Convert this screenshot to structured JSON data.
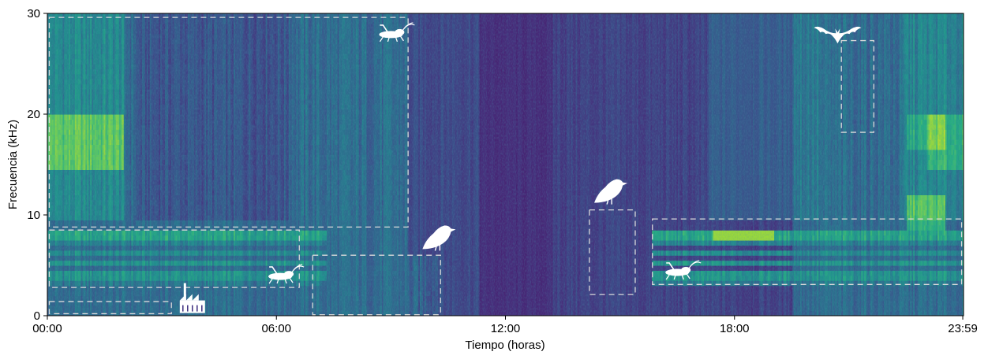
{
  "chart_data": {
    "type": "heatmap",
    "title": "",
    "xlabel": "Tiempo (horas)",
    "ylabel": "Frecuencia (kHz)",
    "xlim": [
      0,
      24
    ],
    "ylim": [
      0,
      30
    ],
    "x_ticks": [
      {
        "value": 0,
        "label": "00:00"
      },
      {
        "value": 6,
        "label": "06:00"
      },
      {
        "value": 12,
        "label": "12:00"
      },
      {
        "value": 18,
        "label": "18:00"
      },
      {
        "value": 23.98,
        "label": "23:59"
      }
    ],
    "y_ticks": [
      {
        "value": 0,
        "label": "0"
      },
      {
        "value": 10,
        "label": "10"
      },
      {
        "value": 20,
        "label": "20"
      },
      {
        "value": 30,
        "label": "30"
      }
    ],
    "colormap": "viridis",
    "grid": false,
    "annotations": [
      {
        "name": "insect-band-night",
        "x0": 0.05,
        "x1": 9.45,
        "y0": 8.8,
        "y1": 29.6,
        "icon": "cricket-icon"
      },
      {
        "name": "insect-band-low",
        "x0": 0.05,
        "x1": 6.6,
        "y0": 2.8,
        "y1": 8.5,
        "icon": "cricket-icon"
      },
      {
        "name": "machinery-band",
        "x0": 0.05,
        "x1": 3.25,
        "y0": 0.2,
        "y1": 1.4,
        "icon": "factory-icon"
      },
      {
        "name": "bird-chorus-dawn",
        "x0": 6.95,
        "x1": 10.3,
        "y0": 0.1,
        "y1": 6.0,
        "icon": "bird-icon"
      },
      {
        "name": "bird-call-afternoon",
        "x0": 14.2,
        "x1": 15.4,
        "y0": 2.1,
        "y1": 10.5,
        "icon": "bird-icon"
      },
      {
        "name": "insect-band-evening",
        "x0": 15.85,
        "x1": 23.95,
        "y0": 3.1,
        "y1": 9.6,
        "icon": "cricket-icon"
      },
      {
        "name": "bat-calls",
        "x0": 20.8,
        "x1": 21.65,
        "y0": 18.2,
        "y1": 27.3,
        "icon": "bat-icon"
      }
    ]
  }
}
